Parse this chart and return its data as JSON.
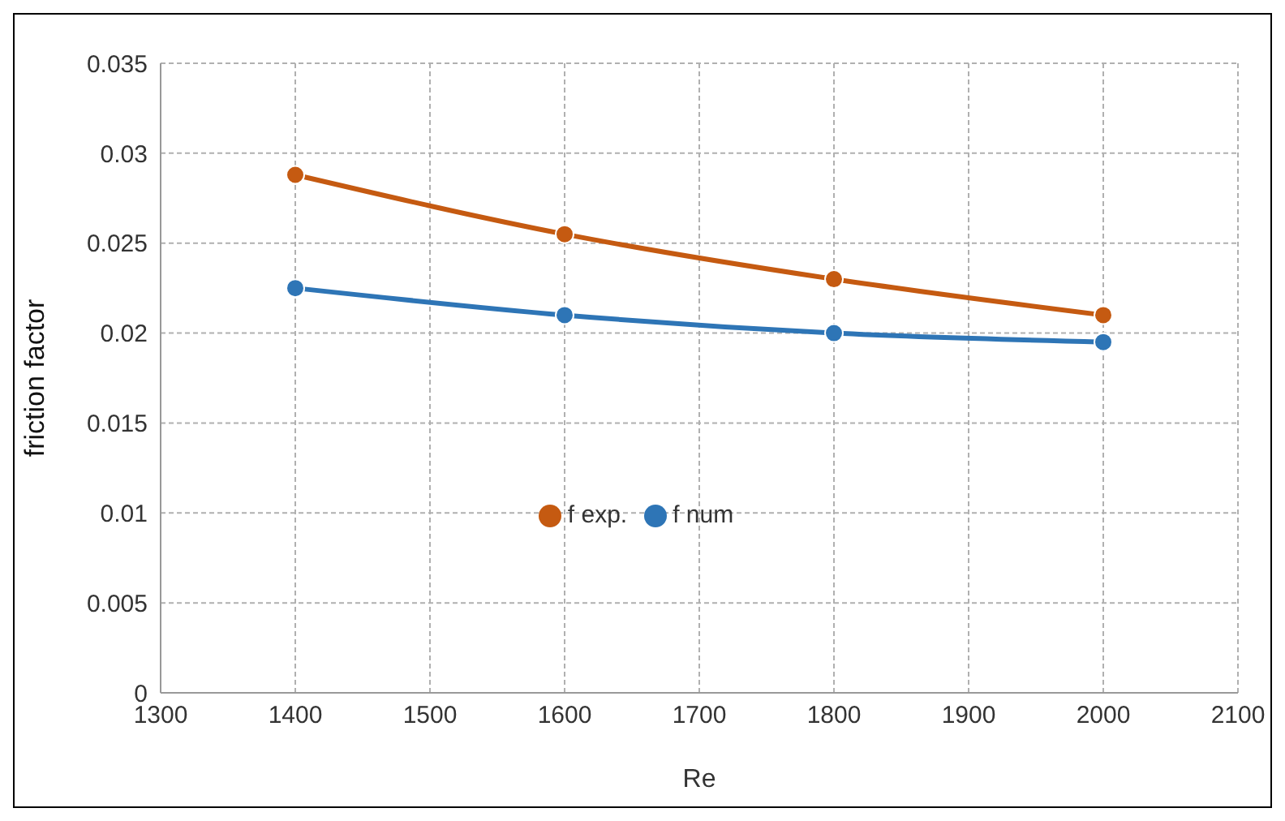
{
  "chart_data": {
    "type": "line",
    "xlabel": "Re",
    "ylabel": "friction factor",
    "x": [
      1400,
      1600,
      1800,
      2000
    ],
    "series": [
      {
        "name": "f num",
        "color": "#2e75b6",
        "values": [
          0.0225,
          0.021,
          0.02,
          0.0195
        ]
      },
      {
        "name": "f exp.",
        "color": "#c55a11",
        "values": [
          0.0288,
          0.0255,
          0.023,
          0.021
        ]
      }
    ],
    "xlim": [
      1300,
      2100
    ],
    "xticks": [
      1300,
      1400,
      1500,
      1600,
      1700,
      1800,
      1900,
      2000,
      2100
    ],
    "ylim": [
      0,
      0.035
    ],
    "yticks": [
      0,
      0.005,
      0.01,
      0.015,
      0.02,
      0.025,
      0.03,
      0.035
    ],
    "grid": true,
    "legend": "center",
    "marker": "circle",
    "line_style": "solid"
  }
}
